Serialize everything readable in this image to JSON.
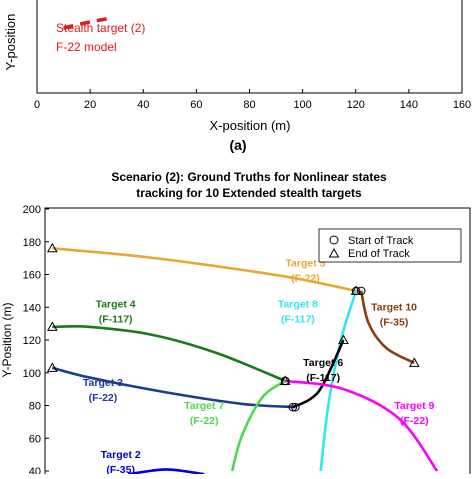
{
  "chart_data": [
    {
      "type": "line",
      "partial": true,
      "title": "",
      "xlabel": "X-position (m)",
      "ylabel": "Y-position",
      "xlim": [
        0,
        160
      ],
      "xticks": [
        "0",
        "20",
        "40",
        "60",
        "80",
        "100",
        "120",
        "140",
        "160"
      ],
      "annotations": [
        "Stealth target (2)",
        "F-22 model"
      ],
      "series": [
        {
          "name": "Stealth target (2)",
          "color": "#e11b1b",
          "style": "dashed",
          "x": [
            10,
            18,
            28
          ],
          "y": [
            null,
            null,
            null
          ]
        }
      ],
      "caption": "(a)"
    },
    {
      "type": "line",
      "title": "Scenario (2):  Ground Truths for  Nonlinear states\ntracking for 10 Extended stealth targets",
      "title_lines": [
        "Scenario (2):  Ground Truths for  Nonlinear states",
        "tracking for 10 Extended stealth targets"
      ],
      "xlabel": "",
      "ylabel": "Y-Position (m)",
      "ylim": [
        40,
        200
      ],
      "yticks": [
        40,
        60,
        80,
        100,
        120,
        140,
        160,
        180,
        200
      ],
      "legend": {
        "placement": "top-right",
        "entries": [
          "Start of Track",
          "End of Track"
        ]
      },
      "series": [
        {
          "label": "Target 5",
          "model": "(F-22)",
          "color": "#e6a832",
          "x": [
            115,
            90,
            60,
            30,
            -5
          ],
          "y": [
            150,
            158,
            165,
            171,
            176
          ]
        },
        {
          "label": "Target 4",
          "model": "(F-117)",
          "color": "#1a7a1a",
          "x": [
            87,
            60,
            35,
            10,
            -5
          ],
          "y": [
            95,
            112,
            123,
            128,
            128
          ]
        },
        {
          "label": "Target 3",
          "model": "(F-22)",
          "color": "#1f3a93",
          "x": [
            91,
            70,
            40,
            10,
            -5
          ],
          "y": [
            79,
            81,
            88,
            97,
            103
          ]
        },
        {
          "label": "Target 10",
          "model": "(F-35)",
          "color": "#8b3a10",
          "x": [
            117,
            120,
            127,
            138
          ],
          "y": [
            150,
            130,
            115,
            106
          ]
        },
        {
          "label": "Target 8",
          "model": "(F-117)",
          "color": "#33e6f0",
          "x": [
            101,
            104,
            109,
            115
          ],
          "y": [
            40,
            80,
            120,
            150
          ]
        },
        {
          "label": "Target 6",
          "model": "(F-117)",
          "color": "#000000",
          "x": [
            90,
            97,
            102,
            110
          ],
          "y": [
            79,
            84,
            93,
            120
          ]
        },
        {
          "label": "Target 7",
          "model": "(F-22)",
          "color": "#4cd94c",
          "x": [
            66,
            70,
            78,
            87
          ],
          "y": [
            40,
            62,
            85,
            95
          ]
        },
        {
          "label": "Target 9",
          "model": "(F-22)",
          "color": "#ff00ff",
          "x": [
            87,
            110,
            132,
            147
          ],
          "y": [
            95,
            90,
            72,
            40
          ]
        },
        {
          "label": "Target 2",
          "model": "(F-35)",
          "color": "#0000dd",
          "x": [
            25,
            40,
            55
          ],
          "y": [
            38,
            41,
            38
          ]
        }
      ]
    }
  ]
}
